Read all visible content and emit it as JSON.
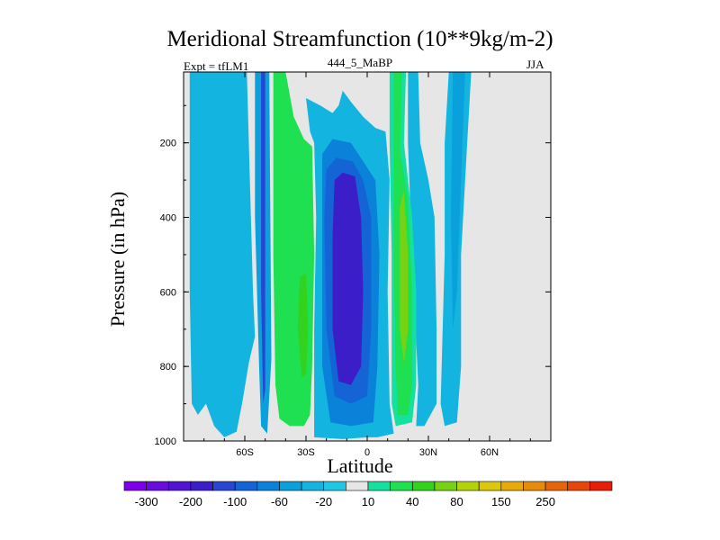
{
  "chart_data": {
    "type": "heatmap",
    "title": "Meridional Streamfunction (10**9kg/m-2)",
    "subtitle_left": "Expt = tfLM1",
    "subtitle_center": "444_5_MaBP",
    "subtitle_right": "JJA",
    "xlabel": "Latitude",
    "ylabel": "Pressure (in hPa)",
    "x_ticks": [
      {
        "value": -60,
        "label": "60S"
      },
      {
        "value": -30,
        "label": "30S"
      },
      {
        "value": 0,
        "label": "0"
      },
      {
        "value": 30,
        "label": "30N"
      },
      {
        "value": 60,
        "label": "60N"
      }
    ],
    "y_ticks": [
      {
        "value": 200,
        "label": "200"
      },
      {
        "value": 400,
        "label": "400"
      },
      {
        "value": 600,
        "label": "600"
      },
      {
        "value": 800,
        "label": "800"
      },
      {
        "value": 1000,
        "label": "1000"
      }
    ],
    "xlim": [
      -90,
      90
    ],
    "ylim": [
      1000,
      10
    ],
    "background_color": "#e6e6e6",
    "colorbar": {
      "labels": [
        "-300",
        "-200",
        "-100",
        "-60",
        "-20",
        "10",
        "40",
        "80",
        "150",
        "250"
      ],
      "colors": [
        "#7d00e6",
        "#6a0cdc",
        "#5014d2",
        "#3c1ec8",
        "#2846d2",
        "#1464d6",
        "#0a82da",
        "#0aa0dc",
        "#14b4e0",
        "#1ec8e4",
        "#e6e6e6",
        "#14e0a0",
        "#1ee050",
        "#32d21e",
        "#78d214",
        "#b4d20a",
        "#dcc80a",
        "#e6aa0a",
        "#e68c0a",
        "#e6640a",
        "#e6460a",
        "#e61e0a"
      ]
    },
    "regions": [
      {
        "name": "southern-cyan-column",
        "value": -10,
        "color": "#14b4e0",
        "points": [
          [
            -87,
            10
          ],
          [
            -59,
            10
          ],
          [
            -58,
            200
          ],
          [
            -57,
            400
          ],
          [
            -56,
            600
          ],
          [
            -55,
            720
          ],
          [
            -58,
            790
          ],
          [
            -61,
            890
          ],
          [
            -64,
            975
          ],
          [
            -70,
            990
          ],
          [
            -75,
            960
          ],
          [
            -79,
            900
          ],
          [
            -83,
            930
          ],
          [
            -86,
            900
          ],
          [
            -87,
            600
          ]
        ]
      },
      {
        "name": "southern-jet-blue-band",
        "value": -40,
        "color": "#0aa0dc",
        "points": [
          [
            -55,
            10
          ],
          [
            -48,
            10
          ],
          [
            -47,
            780
          ],
          [
            -49,
            980
          ],
          [
            -52,
            960
          ],
          [
            -53,
            800
          ],
          [
            -55,
            400
          ]
        ]
      },
      {
        "name": "southern-jet-core",
        "value": -90,
        "color": "#2846d2",
        "points": [
          [
            -52,
            10
          ],
          [
            -50,
            10
          ],
          [
            -50,
            860
          ],
          [
            -51,
            900
          ],
          [
            -52,
            600
          ]
        ]
      },
      {
        "name": "southern-green-cell",
        "value": 40,
        "color": "#1ee050",
        "points": [
          [
            -46,
            10
          ],
          [
            -40,
            10
          ],
          [
            -36,
            130
          ],
          [
            -31,
            190
          ],
          [
            -27,
            210
          ],
          [
            -26,
            500
          ],
          [
            -27,
            800
          ],
          [
            -28,
            930
          ],
          [
            -31,
            960
          ],
          [
            -38,
            960
          ],
          [
            -43,
            940
          ],
          [
            -45,
            850
          ],
          [
            -46,
            500
          ]
        ]
      },
      {
        "name": "southern-green-core",
        "value": 75,
        "color": "#32d21e",
        "points": [
          [
            -33,
            560
          ],
          [
            -30,
            550
          ],
          [
            -29,
            700
          ],
          [
            -30,
            820
          ],
          [
            -32,
            830
          ],
          [
            -34,
            700
          ]
        ]
      },
      {
        "name": "hadley-outer-cyan",
        "value": -20,
        "color": "#14b4e0",
        "points": [
          [
            -28,
            170
          ],
          [
            -30,
            80
          ],
          [
            -23,
            100
          ],
          [
            -17,
            120
          ],
          [
            -14,
            100
          ],
          [
            -12,
            60
          ],
          [
            -8,
            90
          ],
          [
            -2,
            130
          ],
          [
            4,
            160
          ],
          [
            9,
            170
          ],
          [
            11,
            300
          ],
          [
            10,
            600
          ],
          [
            11,
            900
          ],
          [
            13,
            980
          ],
          [
            5,
            990
          ],
          [
            0,
            990
          ],
          [
            -12,
            995
          ],
          [
            -26,
            990
          ],
          [
            -26,
            700
          ],
          [
            -25,
            400
          ],
          [
            -26,
            200
          ]
        ]
      },
      {
        "name": "hadley-mid-blue",
        "value": -60,
        "color": "#0a82da",
        "points": [
          [
            -22,
            230
          ],
          [
            -17,
            190
          ],
          [
            -8,
            200
          ],
          [
            -2,
            250
          ],
          [
            4,
            300
          ],
          [
            6,
            500
          ],
          [
            5,
            800
          ],
          [
            3,
            950
          ],
          [
            -8,
            960
          ],
          [
            -18,
            950
          ],
          [
            -22,
            800
          ],
          [
            -22,
            400
          ]
        ]
      },
      {
        "name": "hadley-blue",
        "value": -100,
        "color": "#1464d6",
        "points": [
          [
            -20,
            270
          ],
          [
            -15,
            240
          ],
          [
            -7,
            250
          ],
          [
            -2,
            300
          ],
          [
            2,
            400
          ],
          [
            2,
            700
          ],
          [
            0,
            880
          ],
          [
            -8,
            900
          ],
          [
            -16,
            880
          ],
          [
            -20,
            700
          ],
          [
            -21,
            400
          ]
        ]
      },
      {
        "name": "hadley-core",
        "value": -150,
        "color": "#3c1ec8",
        "points": [
          [
            -16,
            300
          ],
          [
            -12,
            280
          ],
          [
            -6,
            290
          ],
          [
            -3,
            400
          ],
          [
            -2,
            600
          ],
          [
            -3,
            800
          ],
          [
            -8,
            850
          ],
          [
            -14,
            840
          ],
          [
            -17,
            700
          ],
          [
            -17,
            450
          ]
        ]
      },
      {
        "name": "northern-cyan-column",
        "value": -20,
        "color": "#14b4e0",
        "points": [
          [
            20,
            10
          ],
          [
            25,
            10
          ],
          [
            26,
            200
          ],
          [
            30,
            300
          ],
          [
            33,
            400
          ],
          [
            34,
            700
          ],
          [
            34,
            900
          ],
          [
            28,
            960
          ],
          [
            24,
            960
          ],
          [
            25,
            850
          ],
          [
            22,
            500
          ],
          [
            20,
            200
          ]
        ]
      },
      {
        "name": "northern-teal-cell",
        "value": 15,
        "color": "#14e0a0",
        "points": [
          [
            11,
            10
          ],
          [
            19,
            10
          ],
          [
            18,
            200
          ],
          [
            22,
            400
          ],
          [
            24,
            600
          ],
          [
            24,
            850
          ],
          [
            22,
            950
          ],
          [
            14,
            960
          ],
          [
            12,
            900
          ],
          [
            12,
            500
          ],
          [
            11,
            200
          ]
        ]
      },
      {
        "name": "northern-green-cell",
        "value": 40,
        "color": "#1ee050",
        "points": [
          [
            13,
            10
          ],
          [
            17,
            10
          ],
          [
            16,
            220
          ],
          [
            20,
            350
          ],
          [
            22,
            600
          ],
          [
            22,
            850
          ],
          [
            20,
            930
          ],
          [
            15,
            930
          ],
          [
            14,
            800
          ],
          [
            13,
            500
          ]
        ]
      },
      {
        "name": "northern-green-core",
        "value": 80,
        "color": "#78d214",
        "points": [
          [
            16,
            370
          ],
          [
            18,
            330
          ],
          [
            20,
            500
          ],
          [
            20,
            700
          ],
          [
            18,
            790
          ],
          [
            16,
            700
          ],
          [
            16,
            500
          ]
        ]
      },
      {
        "name": "northern-outer-cyan",
        "value": -20,
        "color": "#14b4e0",
        "points": [
          [
            40,
            10
          ],
          [
            51,
            10
          ],
          [
            49,
            200
          ],
          [
            46,
            500
          ],
          [
            46,
            800
          ],
          [
            44,
            950
          ],
          [
            38,
            960
          ],
          [
            36,
            900
          ],
          [
            38,
            500
          ],
          [
            38,
            200
          ]
        ]
      },
      {
        "name": "northern-outer-blue",
        "value": -40,
        "color": "#0aa0dc",
        "points": [
          [
            42,
            10
          ],
          [
            48,
            10
          ],
          [
            46,
            300
          ],
          [
            44,
            600
          ],
          [
            42,
            700
          ],
          [
            41,
            400
          ]
        ]
      }
    ]
  }
}
